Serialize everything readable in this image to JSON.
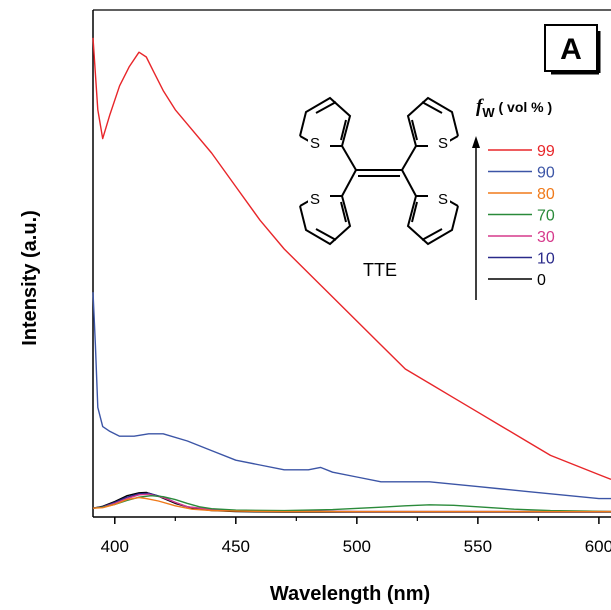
{
  "chart_data": {
    "type": "line",
    "panel_label": "A",
    "xlabel": "Wavelength (nm)",
    "ylabel": "Intensity (a.u.)",
    "xlim": [
      391,
      605
    ],
    "ylim": [
      0,
      100
    ],
    "xticks": [
      400,
      450,
      500,
      550,
      600
    ],
    "y_tick_labels": false,
    "legend_title_main": "f",
    "legend_title_sub": "W",
    "legend_title_unit": " ( vol % )",
    "legend_position": "top-right",
    "molecule_label": "TTE",
    "molecule_atom": "S",
    "series": [
      {
        "name": "99",
        "color": "#e8262a",
        "x": [
          391,
          393,
          395,
          398,
          402,
          406,
          410,
          413,
          416,
          420,
          425,
          430,
          440,
          450,
          460,
          470,
          480,
          484,
          490,
          500,
          510,
          520,
          530,
          540,
          550,
          560,
          570,
          580,
          590,
          600,
          605
        ],
        "y": [
          99,
          84,
          78,
          83,
          89,
          93,
          96,
          95,
          92,
          88,
          84,
          81,
          75,
          68,
          61,
          55,
          50,
          48,
          45,
          40,
          35,
          30,
          27,
          24,
          21,
          18,
          15,
          12,
          10,
          8,
          7
        ]
      },
      {
        "name": "90",
        "color": "#3c55a6",
        "x": [
          391,
          392,
          393,
          395,
          398,
          402,
          408,
          414,
          420,
          430,
          440,
          450,
          460,
          470,
          480,
          485,
          490,
          500,
          510,
          520,
          530,
          540,
          550,
          560,
          570,
          580,
          590,
          600,
          605
        ],
        "y": [
          46,
          35,
          22,
          18,
          17,
          16,
          16,
          16.5,
          16.5,
          15,
          13,
          11,
          10,
          9,
          9,
          9.5,
          8.5,
          7.5,
          6.5,
          6.5,
          6.5,
          6,
          5.5,
          5,
          4.5,
          4,
          3.5,
          3,
          3
        ]
      },
      {
        "name": "80",
        "color": "#f07a1a",
        "x": [
          391,
          395,
          400,
          405,
          410,
          413,
          418,
          425,
          432,
          440,
          450,
          470,
          500,
          530,
          560,
          605
        ],
        "y": [
          1.0,
          1.1,
          1.8,
          2.8,
          3.2,
          3.0,
          2.5,
          1.5,
          0.8,
          0.5,
          0.4,
          0.3,
          0.3,
          0.3,
          0.3,
          0.3
        ]
      },
      {
        "name": "70",
        "color": "#2a8a3a",
        "x": [
          391,
          395,
          400,
          405,
          410,
          415,
          420,
          425,
          430,
          435,
          440,
          450,
          470,
          490,
          510,
          520,
          530,
          540,
          550,
          565,
          580,
          595,
          605
        ],
        "y": [
          1.0,
          1.2,
          1.8,
          2.6,
          3.3,
          3.6,
          3.4,
          2.8,
          2.0,
          1.3,
          0.9,
          0.6,
          0.5,
          0.7,
          1.2,
          1.5,
          1.7,
          1.6,
          1.3,
          0.8,
          0.5,
          0.4,
          0.3
        ]
      },
      {
        "name": "30",
        "color": "#d63a8c",
        "x": [
          391,
          395,
          400,
          405,
          410,
          414,
          420,
          425,
          430,
          440,
          450,
          470,
          500,
          530,
          560,
          605
        ],
        "y": [
          1.0,
          1.2,
          2.0,
          3.0,
          3.8,
          3.9,
          3.2,
          2.2,
          1.3,
          0.7,
          0.5,
          0.4,
          0.3,
          0.3,
          0.3,
          0.3
        ]
      },
      {
        "name": "10",
        "color": "#2a2a8a",
        "x": [
          391,
          395,
          400,
          405,
          410,
          414,
          420,
          425,
          430,
          440,
          450,
          470,
          500,
          530,
          560,
          605
        ],
        "y": [
          1.0,
          1.3,
          2.2,
          3.3,
          4.0,
          4.1,
          3.3,
          2.2,
          1.3,
          0.7,
          0.5,
          0.4,
          0.3,
          0.3,
          0.3,
          0.3
        ]
      },
      {
        "name": "0",
        "color": "#000000",
        "x": [
          391,
          395,
          400,
          405,
          410,
          413,
          418,
          425,
          432,
          440,
          450,
          470,
          500,
          530,
          560,
          605
        ],
        "y": [
          1.0,
          1.4,
          2.4,
          3.6,
          4.2,
          4.3,
          3.5,
          2.0,
          1.0,
          0.5,
          0.3,
          0.2,
          0.2,
          0.2,
          0.2,
          0.2
        ]
      }
    ]
  }
}
